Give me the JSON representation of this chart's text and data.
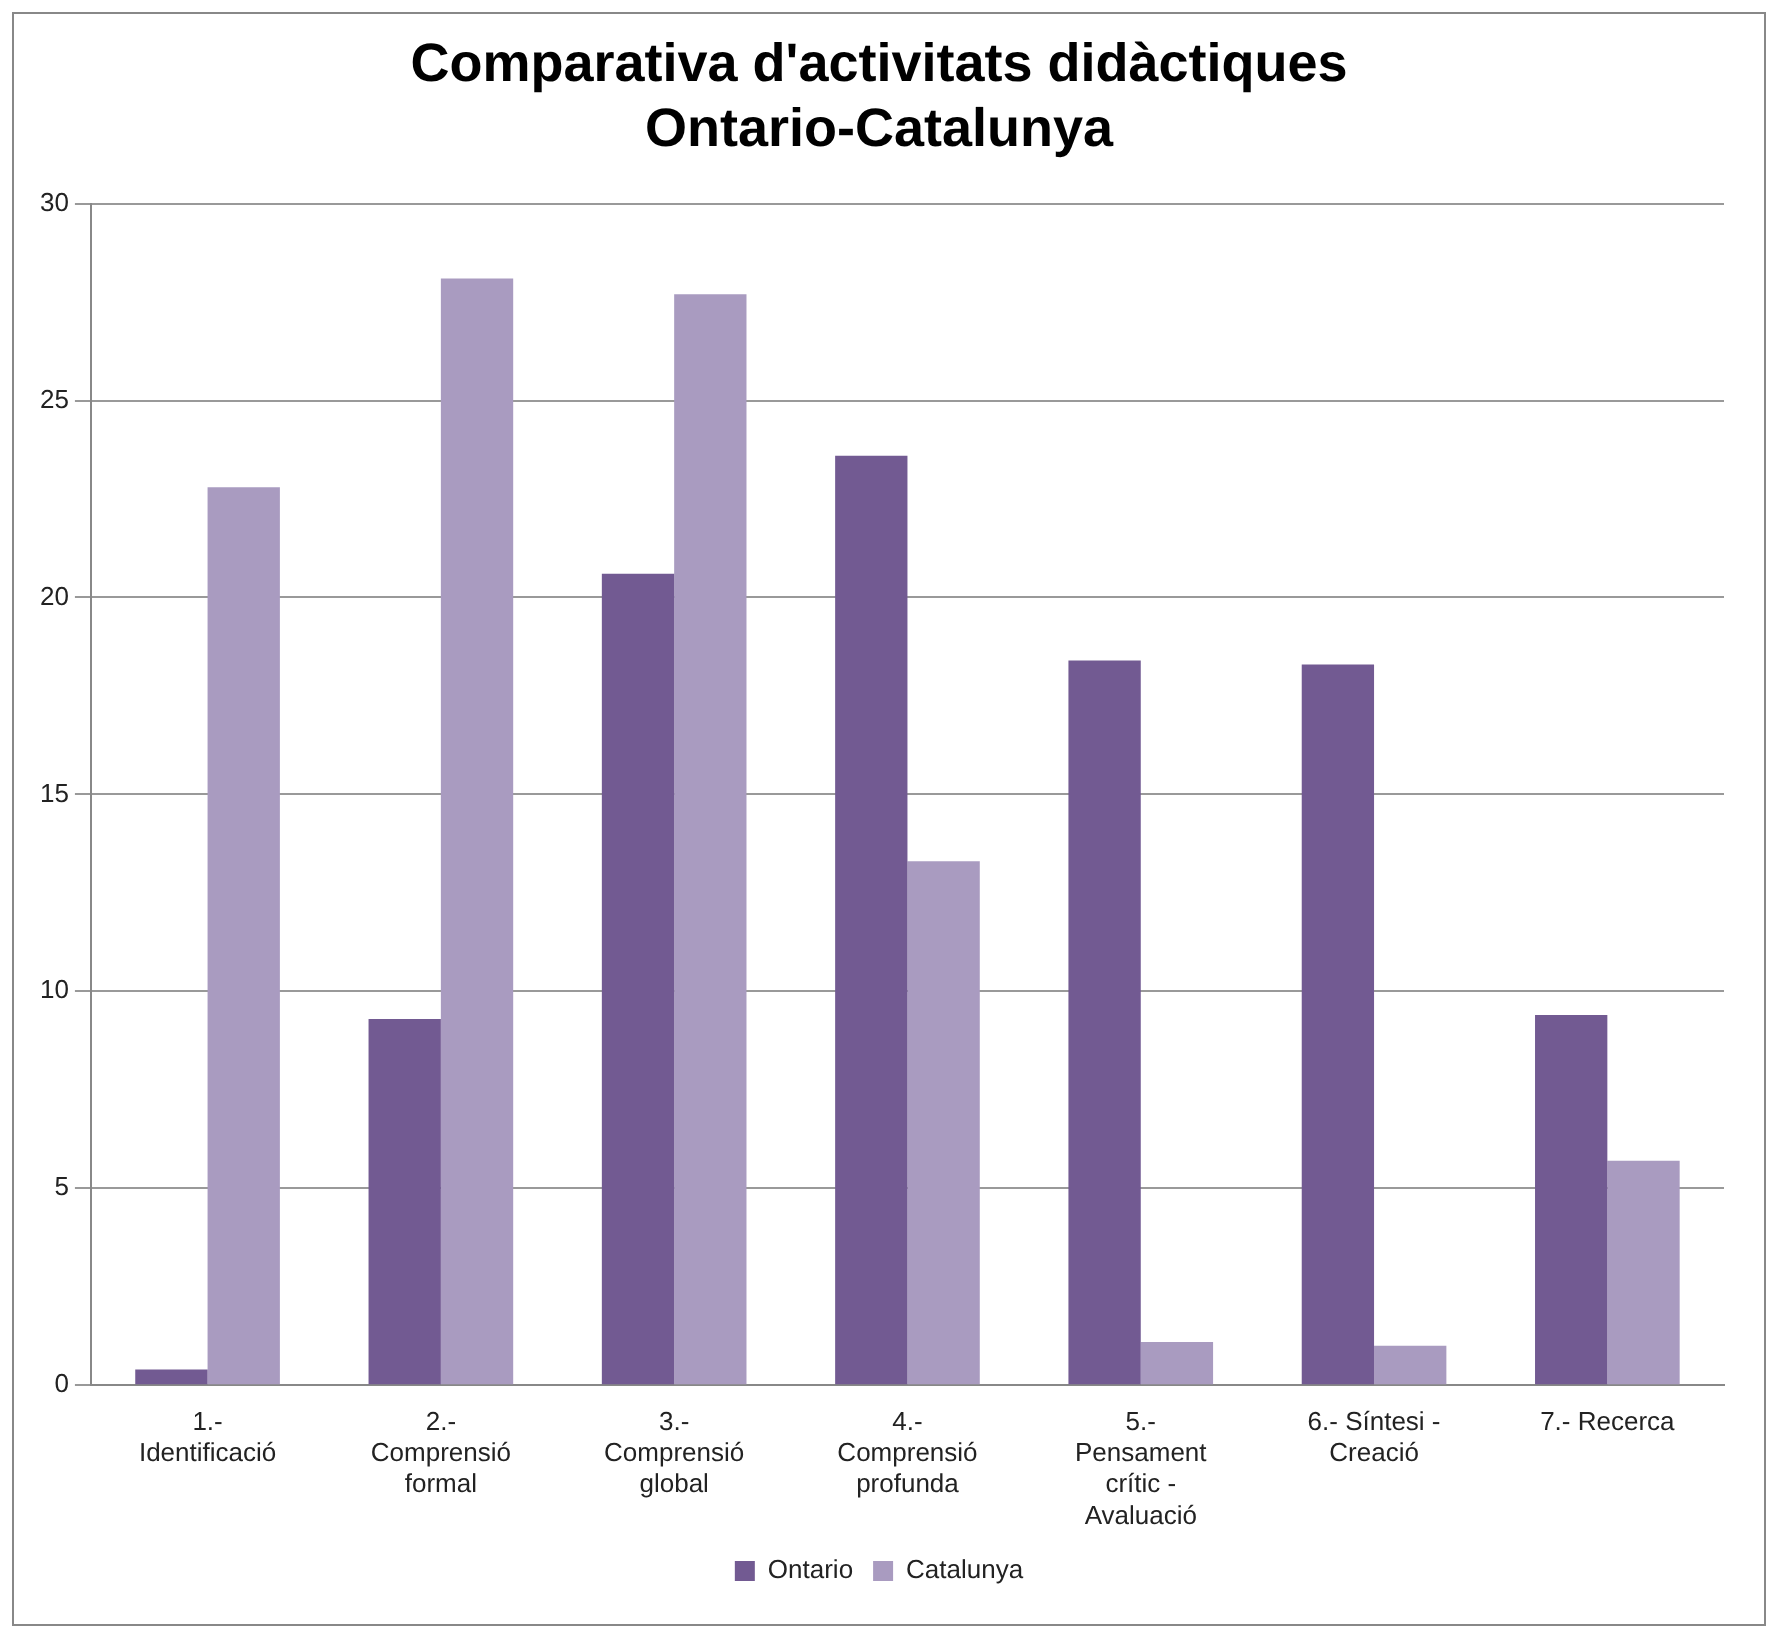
{
  "chart_data": {
    "type": "bar",
    "title": "Comparativa d'activitats didàctiques Ontario-Catalunya",
    "categories": [
      "1.- Identificació",
      "2.- Comprensió formal",
      "3.- Comprensió global",
      "4.- Comprensió profunda",
      "5.- Pensament crític - Avaluació",
      "6.- Síntesi - Creació",
      "7.- Recerca"
    ],
    "series": [
      {
        "name": "Ontario",
        "color": "#725a92",
        "values": [
          0.4,
          9.3,
          20.6,
          23.6,
          18.4,
          18.3,
          9.4
        ]
      },
      {
        "name": "Catalunya",
        "color": "#a99bc0",
        "values": [
          22.8,
          28.1,
          27.7,
          13.3,
          1.1,
          1.0,
          5.7
        ]
      }
    ],
    "ylim": [
      0,
      30
    ],
    "yticks": [
      0,
      5,
      10,
      15,
      20,
      25,
      30
    ],
    "grid": "y",
    "legend": "bottom"
  }
}
